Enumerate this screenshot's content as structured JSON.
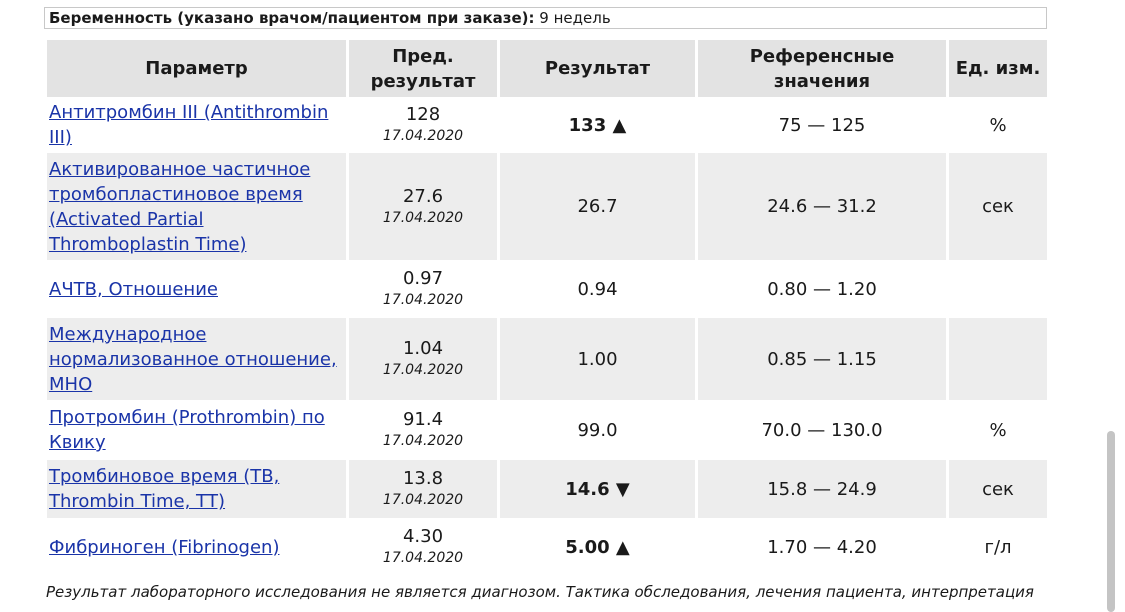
{
  "pregnancy": {
    "label": "Беременность (указано врачом/пациентом при заказе):",
    "value": "9 недель"
  },
  "table": {
    "headers": {
      "param": "Параметр",
      "prev": "Пред. результат",
      "result": "Результат",
      "ref": "Референсные значения",
      "unit": "Ед. изм."
    },
    "rows": [
      {
        "name": "Антитромбин III (Antithrombin III)",
        "prev_value": "128",
        "prev_date": "17.04.2020",
        "result": "133",
        "flag": "▲",
        "reference": "75 — 125",
        "unit": "%"
      },
      {
        "name": "Активированное частичное тромбопластиновое время (Activated Partial Thromboplastin Time)",
        "prev_value": "27.6",
        "prev_date": "17.04.2020",
        "result": "26.7",
        "flag": "",
        "reference": "24.6 — 31.2",
        "unit": "сек"
      },
      {
        "name": "АЧТВ, Отношение",
        "prev_value": "0.97",
        "prev_date": "17.04.2020",
        "result": "0.94",
        "flag": "",
        "reference": "0.80 — 1.20",
        "unit": ""
      },
      {
        "name": "Международное нормализованное отношение, МНО",
        "prev_value": "1.04",
        "prev_date": "17.04.2020",
        "result": "1.00",
        "flag": "",
        "reference": "0.85 — 1.15",
        "unit": ""
      },
      {
        "name": "Протромбин (Prothrombin) по Квику",
        "prev_value": "91.4",
        "prev_date": "17.04.2020",
        "result": "99.0",
        "flag": "",
        "reference": "70.0 — 130.0",
        "unit": "%"
      },
      {
        "name": "Тромбиновое время (ТВ, Thrombin Time, ТТ)",
        "prev_value": "13.8",
        "prev_date": "17.04.2020",
        "result": "14.6",
        "flag": "▼",
        "reference": "15.8 — 24.9",
        "unit": "сек"
      },
      {
        "name": "Фибриноген (Fibrinogen)",
        "prev_value": "4.30",
        "prev_date": "17.04.2020",
        "result": "5.00",
        "flag": "▲",
        "reference": "1.70 — 4.20",
        "unit": "г/л"
      }
    ]
  },
  "footer_note": "Результат лабораторного исследования не является диагнозом. Тактика обследования, лечения пациента, интерпретация"
}
